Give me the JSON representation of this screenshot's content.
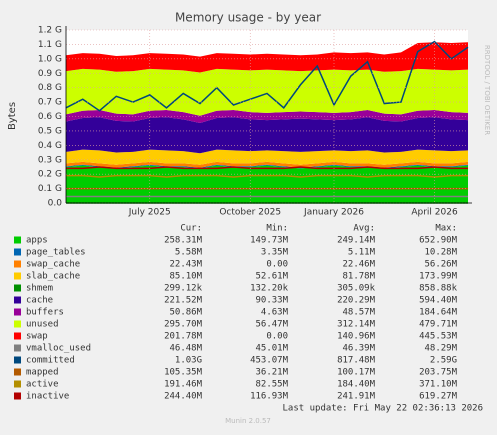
{
  "chart_data": {
    "type": "area",
    "title": "Memory usage - by year",
    "y_label": "Bytes",
    "watermark": "RRDTOOL / TOBI OETIKER",
    "categories": [
      null,
      null,
      null,
      null,
      null,
      "July 2025",
      null,
      null,
      null,
      null,
      null,
      "October 2025",
      null,
      null,
      null,
      null,
      "January 2026",
      null,
      null,
      null,
      null,
      null,
      "April 2026",
      null,
      null
    ],
    "ylim": [
      0,
      1.2
    ],
    "yticks": [
      {
        "value": 0,
        "label": "0.0"
      },
      {
        "value": 0.1,
        "label": "0.1 G"
      },
      {
        "value": 0.2,
        "label": "0.2 G"
      },
      {
        "value": 0.3,
        "label": "0.3 G"
      },
      {
        "value": 0.4,
        "label": "0.4 G"
      },
      {
        "value": 0.5,
        "label": "0.5 G"
      },
      {
        "value": 0.6,
        "label": "0.6 G"
      },
      {
        "value": 0.7,
        "label": "0.7 G"
      },
      {
        "value": 0.8,
        "label": "0.8 G"
      },
      {
        "value": 0.9,
        "label": "0.9 G"
      },
      {
        "value": 1.0,
        "label": "1.0 G"
      },
      {
        "value": 1.1,
        "label": "1.1 G"
      },
      {
        "value": 1.2,
        "label": "1.2 G"
      }
    ],
    "grid": true,
    "legend_columns": [
      "Cur:",
      "Min:",
      "Avg:",
      "Max:"
    ],
    "series": [
      {
        "name": "apps",
        "color": "#00cc00",
        "style": "area",
        "stats": [
          "258.31M",
          "149.73M",
          "249.14M",
          "652.90M"
        ],
        "values": [
          0.25,
          0.26,
          0.25,
          0.24,
          0.25,
          0.26,
          0.25,
          0.25,
          0.24,
          0.26,
          0.25,
          0.25,
          0.26,
          0.25,
          0.24,
          0.25,
          0.26,
          0.25,
          0.25,
          0.24,
          0.25,
          0.26,
          0.25,
          0.25,
          0.26
        ]
      },
      {
        "name": "page_tables",
        "color": "#0066b3",
        "style": "area",
        "stats": [
          "5.58M",
          "3.35M",
          "5.11M",
          "10.28M"
        ],
        "values": [
          0.005,
          0.005,
          0.005,
          0.005,
          0.005,
          0.005,
          0.005,
          0.005,
          0.005,
          0.005,
          0.005,
          0.005,
          0.005,
          0.005,
          0.005,
          0.005,
          0.005,
          0.005,
          0.005,
          0.005,
          0.005,
          0.005,
          0.005,
          0.005,
          0.005
        ]
      },
      {
        "name": "swap_cache",
        "color": "#ff8000",
        "style": "area",
        "stats": [
          "22.43M",
          "0.00",
          "22.46M",
          "56.26M"
        ],
        "values": [
          0.02,
          0.02,
          0.02,
          0.02,
          0.02,
          0.02,
          0.02,
          0.02,
          0.02,
          0.02,
          0.02,
          0.02,
          0.02,
          0.02,
          0.02,
          0.02,
          0.02,
          0.02,
          0.02,
          0.02,
          0.02,
          0.02,
          0.02,
          0.02,
          0.02
        ]
      },
      {
        "name": "slab_cache",
        "color": "#ffcc00",
        "style": "area",
        "stats": [
          "85.10M",
          "52.61M",
          "81.78M",
          "173.99M"
        ],
        "values": [
          0.08,
          0.085,
          0.09,
          0.085,
          0.08,
          0.085,
          0.09,
          0.085,
          0.08,
          0.085,
          0.09,
          0.085,
          0.08,
          0.085,
          0.09,
          0.085,
          0.08,
          0.085,
          0.09,
          0.085,
          0.08,
          0.085,
          0.09,
          0.085,
          0.08
        ]
      },
      {
        "name": "shmem",
        "color": "#008f00",
        "style": "line",
        "stats": [
          "299.12k",
          "132.20k",
          "305.09k",
          "858.88k"
        ],
        "values": [
          0.0003,
          0.0003,
          0.0003,
          0.0003,
          0.0003,
          0.0003,
          0.0003,
          0.0003,
          0.0003,
          0.0003,
          0.0003,
          0.0003,
          0.0003,
          0.0003,
          0.0003,
          0.0003,
          0.0003,
          0.0003,
          0.0003,
          0.0003,
          0.0003,
          0.0003,
          0.0003,
          0.0003,
          0.0003
        ]
      },
      {
        "name": "cache",
        "color": "#330099",
        "style": "area",
        "stats": [
          "221.52M",
          "90.33M",
          "220.29M",
          "594.40M"
        ],
        "values": [
          0.21,
          0.22,
          0.23,
          0.22,
          0.21,
          0.22,
          0.23,
          0.22,
          0.21,
          0.22,
          0.23,
          0.22,
          0.21,
          0.22,
          0.23,
          0.22,
          0.21,
          0.22,
          0.23,
          0.22,
          0.21,
          0.22,
          0.23,
          0.22,
          0.21
        ]
      },
      {
        "name": "buffers",
        "color": "#990099",
        "style": "area",
        "stats": [
          "50.86M",
          "4.63M",
          "48.57M",
          "184.64M"
        ],
        "values": [
          0.05,
          0.05,
          0.05,
          0.05,
          0.05,
          0.05,
          0.05,
          0.05,
          0.05,
          0.05,
          0.05,
          0.05,
          0.05,
          0.05,
          0.05,
          0.05,
          0.05,
          0.05,
          0.05,
          0.05,
          0.05,
          0.05,
          0.05,
          0.05,
          0.05
        ]
      },
      {
        "name": "unused",
        "color": "#ccff00",
        "style": "area",
        "stats": [
          "295.70M",
          "56.47M",
          "312.14M",
          "479.71M"
        ],
        "values": [
          0.3,
          0.29,
          0.28,
          0.29,
          0.3,
          0.29,
          0.28,
          0.29,
          0.3,
          0.29,
          0.28,
          0.29,
          0.3,
          0.29,
          0.28,
          0.29,
          0.3,
          0.29,
          0.28,
          0.29,
          0.3,
          0.29,
          0.28,
          0.29,
          0.3
        ]
      },
      {
        "name": "swap",
        "color": "#ff0000",
        "style": "area",
        "stats": [
          "201.78M",
          "0.00",
          "140.96M",
          "445.53M"
        ],
        "values": [
          0.11,
          0.11,
          0.11,
          0.11,
          0.11,
          0.11,
          0.11,
          0.11,
          0.11,
          0.11,
          0.11,
          0.11,
          0.11,
          0.11,
          0.11,
          0.11,
          0.12,
          0.12,
          0.12,
          0.12,
          0.13,
          0.18,
          0.19,
          0.19,
          0.19
        ]
      },
      {
        "name": "vmalloc_used",
        "color": "#808080",
        "style": "line",
        "stats": [
          "46.48M",
          "45.01M",
          "46.39M",
          "48.29M"
        ],
        "values": [
          0.045,
          0.045,
          0.045,
          0.045,
          0.045,
          0.045,
          0.045,
          0.045,
          0.045,
          0.045,
          0.045,
          0.045,
          0.045,
          0.045,
          0.045,
          0.045,
          0.045,
          0.045,
          0.045,
          0.045,
          0.045,
          0.045,
          0.045,
          0.045,
          0.045
        ]
      },
      {
        "name": "committed",
        "color": "#00487d",
        "style": "line",
        "stats": [
          "1.03G",
          "453.07M",
          "817.48M",
          "2.59G"
        ],
        "values": [
          0.66,
          0.72,
          0.64,
          0.74,
          0.7,
          0.75,
          0.66,
          0.76,
          0.69,
          0.8,
          0.68,
          0.72,
          0.76,
          0.66,
          0.82,
          0.95,
          0.68,
          0.88,
          0.98,
          0.69,
          0.7,
          1.05,
          1.12,
          1.0,
          1.08
        ]
      },
      {
        "name": "mapped",
        "color": "#b35a00",
        "style": "line",
        "stats": [
          "105.35M",
          "36.21M",
          "100.17M",
          "203.75M"
        ],
        "values": [
          0.1,
          0.1,
          0.1,
          0.1,
          0.1,
          0.1,
          0.1,
          0.1,
          0.1,
          0.1,
          0.1,
          0.1,
          0.1,
          0.1,
          0.1,
          0.1,
          0.1,
          0.1,
          0.1,
          0.1,
          0.1,
          0.1,
          0.1,
          0.1,
          0.1
        ]
      },
      {
        "name": "active",
        "color": "#b38f00",
        "style": "line",
        "stats": [
          "191.46M",
          "82.55M",
          "184.40M",
          "371.10M"
        ],
        "values": [
          0.19,
          0.19,
          0.18,
          0.19,
          0.19,
          0.19,
          0.18,
          0.19,
          0.19,
          0.19,
          0.18,
          0.19,
          0.19,
          0.19,
          0.18,
          0.19,
          0.19,
          0.19,
          0.18,
          0.19,
          0.19,
          0.19,
          0.18,
          0.19,
          0.19
        ]
      },
      {
        "name": "inactive",
        "color": "#b30000",
        "style": "line",
        "stats": [
          "244.40M",
          "116.93M",
          "241.91M",
          "619.27M"
        ],
        "values": [
          0.24,
          0.24,
          0.25,
          0.24,
          0.24,
          0.24,
          0.25,
          0.24,
          0.24,
          0.24,
          0.25,
          0.24,
          0.24,
          0.24,
          0.25,
          0.24,
          0.24,
          0.24,
          0.25,
          0.24,
          0.24,
          0.24,
          0.25,
          0.24,
          0.24
        ]
      }
    ],
    "last_update": "Last update: Fri May 22 02:36:13 2026",
    "version": "Munin 2.0.57"
  }
}
